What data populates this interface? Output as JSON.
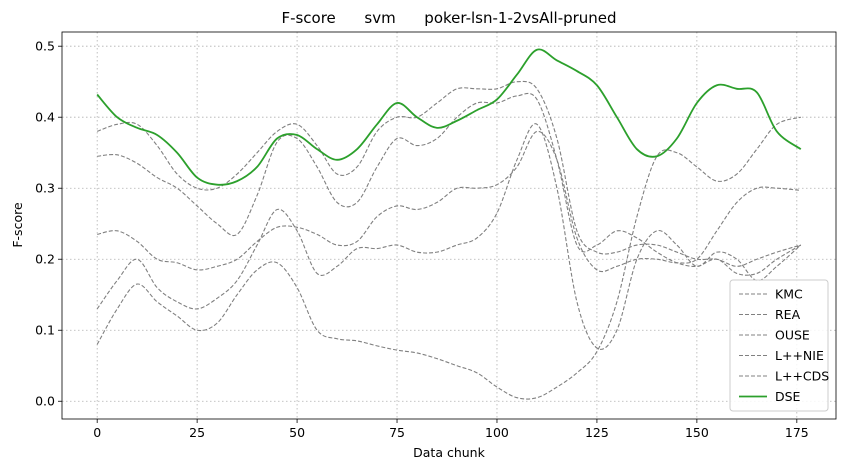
{
  "chart_data": {
    "type": "line",
    "title": "F-score      svm      poker-lsn-1-2vsAll-pruned",
    "xlabel": "Data chunk",
    "ylabel": "F-score",
    "xlim": [
      -8.8,
      184.8
    ],
    "ylim": [
      -0.025,
      0.52
    ],
    "xticks": [
      0,
      25,
      50,
      75,
      100,
      125,
      150,
      175
    ],
    "yticks": [
      0.0,
      0.1,
      0.2,
      0.3,
      0.4,
      0.5
    ],
    "ytick_labels": [
      "0.0",
      "0.1",
      "0.2",
      "0.3",
      "0.4",
      "0.5"
    ],
    "grid": true,
    "legend_position": "lower-right",
    "series": [
      {
        "name": "KMC",
        "style": "dashed",
        "color": "#808080",
        "x": [
          0,
          5,
          10,
          15,
          20,
          25,
          30,
          35,
          40,
          45,
          50,
          55,
          60,
          65,
          70,
          75,
          80,
          85,
          90,
          95,
          100,
          105,
          110,
          115,
          120,
          125,
          130,
          135,
          140,
          145,
          150,
          155,
          160,
          165,
          170,
          176
        ],
        "y": [
          0.38,
          0.39,
          0.39,
          0.36,
          0.32,
          0.3,
          0.3,
          0.32,
          0.35,
          0.38,
          0.39,
          0.36,
          0.32,
          0.33,
          0.38,
          0.4,
          0.4,
          0.42,
          0.44,
          0.44,
          0.44,
          0.45,
          0.44,
          0.37,
          0.24,
          0.21,
          0.21,
          0.22,
          0.22,
          0.21,
          0.2,
          0.2,
          0.19,
          0.2,
          0.21,
          0.22
        ]
      },
      {
        "name": "REA",
        "style": "dashed",
        "color": "#808080",
        "x": [
          0,
          5,
          10,
          15,
          20,
          25,
          30,
          35,
          40,
          45,
          50,
          55,
          60,
          65,
          70,
          75,
          80,
          85,
          90,
          95,
          100,
          105,
          110,
          115,
          120,
          125,
          130,
          135,
          140,
          145,
          150,
          155,
          160,
          165,
          170,
          176
        ],
        "y": [
          0.345,
          0.347,
          0.335,
          0.315,
          0.3,
          0.275,
          0.25,
          0.235,
          0.29,
          0.365,
          0.37,
          0.33,
          0.28,
          0.28,
          0.33,
          0.37,
          0.36,
          0.37,
          0.4,
          0.42,
          0.42,
          0.43,
          0.425,
          0.34,
          0.22,
          0.22,
          0.24,
          0.23,
          0.21,
          0.195,
          0.19,
          0.2,
          0.18,
          0.18,
          0.2,
          0.22
        ]
      },
      {
        "name": "OUSE",
        "style": "dashed",
        "color": "#808080",
        "x": [
          0,
          5,
          10,
          15,
          20,
          25,
          30,
          35,
          40,
          45,
          50,
          55,
          60,
          65,
          70,
          75,
          80,
          85,
          90,
          95,
          100,
          105,
          110,
          115,
          120,
          125,
          130,
          135,
          140,
          145,
          150,
          155,
          160,
          165,
          170,
          176
        ],
        "y": [
          0.235,
          0.24,
          0.225,
          0.2,
          0.195,
          0.185,
          0.19,
          0.2,
          0.225,
          0.245,
          0.245,
          0.235,
          0.22,
          0.225,
          0.26,
          0.275,
          0.27,
          0.28,
          0.3,
          0.3,
          0.305,
          0.33,
          0.38,
          0.34,
          0.23,
          0.185,
          0.19,
          0.2,
          0.2,
          0.195,
          0.2,
          0.24,
          0.28,
          0.3,
          0.3,
          0.297
        ]
      },
      {
        "name": "L++NIE",
        "style": "dashed",
        "color": "#808080",
        "x": [
          0,
          5,
          10,
          15,
          20,
          25,
          30,
          35,
          40,
          45,
          50,
          55,
          60,
          65,
          70,
          75,
          80,
          85,
          90,
          95,
          100,
          105,
          110,
          115,
          120,
          125,
          130,
          135,
          140,
          145,
          150,
          155,
          160,
          165,
          170,
          176
        ],
        "y": [
          0.13,
          0.17,
          0.2,
          0.16,
          0.14,
          0.13,
          0.145,
          0.17,
          0.22,
          0.27,
          0.24,
          0.18,
          0.19,
          0.215,
          0.215,
          0.22,
          0.21,
          0.21,
          0.22,
          0.23,
          0.265,
          0.34,
          0.39,
          0.3,
          0.14,
          0.075,
          0.1,
          0.2,
          0.24,
          0.22,
          0.19,
          0.21,
          0.2,
          0.17,
          0.19,
          0.22
        ]
      },
      {
        "name": "L++CDS",
        "style": "dashed",
        "color": "#808080",
        "x": [
          0,
          5,
          10,
          15,
          20,
          25,
          30,
          35,
          40,
          45,
          50,
          55,
          60,
          65,
          70,
          75,
          80,
          85,
          90,
          95,
          100,
          105,
          110,
          115,
          120,
          125,
          130,
          135,
          140,
          145,
          150,
          155,
          160,
          165,
          170,
          176
        ],
        "y": [
          0.08,
          0.13,
          0.165,
          0.14,
          0.12,
          0.1,
          0.11,
          0.15,
          0.185,
          0.195,
          0.16,
          0.1,
          0.088,
          0.085,
          0.078,
          0.072,
          0.068,
          0.06,
          0.05,
          0.04,
          0.02,
          0.005,
          0.005,
          0.02,
          0.04,
          0.07,
          0.14,
          0.26,
          0.345,
          0.35,
          0.33,
          0.31,
          0.32,
          0.355,
          0.39,
          0.4
        ]
      },
      {
        "name": "DSE",
        "style": "solid",
        "color": "#2ca02c",
        "x": [
          0,
          5,
          10,
          15,
          20,
          25,
          30,
          35,
          40,
          45,
          50,
          55,
          60,
          65,
          70,
          75,
          80,
          85,
          90,
          95,
          100,
          105,
          110,
          115,
          120,
          125,
          130,
          135,
          140,
          145,
          150,
          155,
          160,
          165,
          170,
          176
        ],
        "y": [
          0.432,
          0.4,
          0.385,
          0.375,
          0.35,
          0.315,
          0.305,
          0.31,
          0.33,
          0.37,
          0.375,
          0.355,
          0.34,
          0.355,
          0.39,
          0.42,
          0.4,
          0.385,
          0.395,
          0.41,
          0.425,
          0.46,
          0.495,
          0.48,
          0.465,
          0.445,
          0.4,
          0.355,
          0.345,
          0.37,
          0.42,
          0.445,
          0.44,
          0.435,
          0.38,
          0.355
        ]
      }
    ]
  }
}
